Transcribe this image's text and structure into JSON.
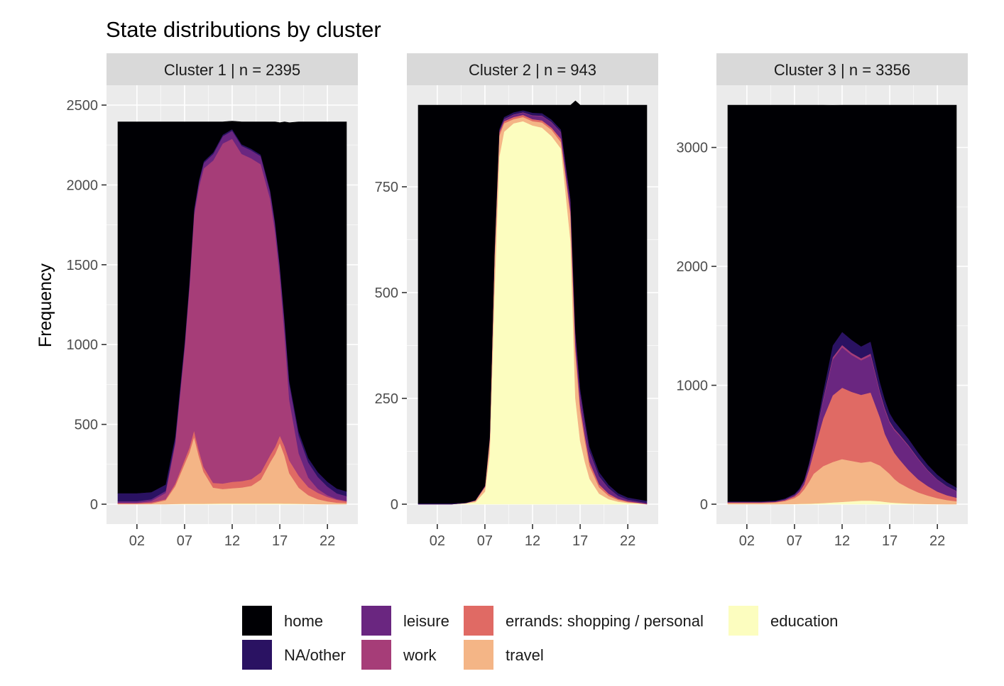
{
  "chart_data": {
    "type": "area",
    "title": "State distributions by cluster",
    "ylabel": "Frequency",
    "xlabel": "",
    "x_ticks": [
      "02",
      "07",
      "12",
      "17",
      "22"
    ],
    "x_tick_hours": [
      2,
      7,
      12,
      17,
      22
    ],
    "xlim": [
      0,
      24
    ],
    "states": [
      "home",
      "NA/other",
      "leisure",
      "work",
      "errands: shopping / personal",
      "travel",
      "education"
    ],
    "colors": {
      "home": "#000004",
      "NA/other": "#2a1262",
      "leisure": "#6a2680",
      "work": "#a63d78",
      "errands: shopping / personal": "#e06a64",
      "travel": "#f4b586",
      "education": "#fcfdbf"
    },
    "x_hours": [
      0,
      2,
      3.5,
      5,
      6,
      7,
      7.5,
      8,
      8.5,
      9,
      10,
      11,
      12,
      13,
      14,
      15,
      16,
      16.5,
      17,
      17.5,
      18,
      19,
      20,
      21,
      22,
      23,
      24
    ],
    "facets": [
      {
        "label": "Cluster 1  |  n = 2395",
        "n": 2395,
        "ylim": [
          0,
          2500
        ],
        "y_ticks": [
          0,
          500,
          1000,
          1500,
          2000,
          2500
        ],
        "series": [
          {
            "name": "education",
            "values": [
              0,
              0,
              0,
              0,
              2,
              3,
              3,
              3,
              3,
              3,
              4,
              5,
              5,
              5,
              5,
              5,
              5,
              5,
              5,
              4,
              4,
              3,
              2,
              1,
              0,
              0,
              0
            ]
          },
          {
            "name": "travel",
            "values": [
              3,
              3,
              5,
              25,
              110,
              250,
              320,
              420,
              300,
              200,
              100,
              90,
              95,
              100,
              110,
              150,
              260,
              310,
              380,
              300,
              190,
              100,
              55,
              30,
              18,
              10,
              8
            ]
          },
          {
            "name": "errands: shopping / personal",
            "values": [
              4,
              4,
              6,
              6,
              15,
              25,
              30,
              40,
              35,
              30,
              30,
              35,
              40,
              40,
              42,
              45,
              45,
              45,
              45,
              60,
              80,
              75,
              50,
              40,
              28,
              18,
              10
            ]
          },
          {
            "name": "work",
            "values": [
              2,
              2,
              10,
              40,
              250,
              700,
              1000,
              1350,
              1650,
              1870,
              2020,
              2130,
              2150,
              2050,
              2010,
              1930,
              1600,
              1350,
              1000,
              700,
              380,
              140,
              60,
              25,
              10,
              5,
              3
            ]
          },
          {
            "name": "leisure",
            "values": [
              10,
              10,
              10,
              12,
              15,
              20,
              22,
              25,
              30,
              35,
              40,
              45,
              50,
              50,
              50,
              50,
              45,
              50,
              60,
              80,
              100,
              110,
              95,
              75,
              55,
              35,
              30
            ]
          },
          {
            "name": "NA/other",
            "values": [
              50,
              50,
              45,
              40,
              30,
              20,
              15,
              12,
              10,
              10,
              10,
              10,
              10,
              10,
              10,
              10,
              10,
              10,
              10,
              15,
              20,
              25,
              28,
              30,
              30,
              30,
              30
            ]
          },
          {
            "name": "home",
            "values": [
              2326,
              2326,
              2319,
              2272,
              1973,
              1377,
              1005,
              545,
              367,
              247,
              191,
              80,
              50,
              140,
              168,
              205,
              430,
              625,
              890,
              1236,
              1616,
              1942,
              2105,
              2194,
              2254,
              2297,
              2314
            ]
          }
        ]
      },
      {
        "label": "Cluster 2  |  n = 943",
        "n": 943,
        "ylim": [
          0,
          943
        ],
        "y_ticks": [
          0,
          250,
          500,
          750
        ],
        "series": [
          {
            "name": "education",
            "values": [
              0,
              0,
              0,
              2,
              5,
              30,
              120,
              500,
              820,
              880,
              900,
              905,
              895,
              890,
              870,
              840,
              620,
              250,
              150,
              100,
              60,
              25,
              12,
              6,
              3,
              2,
              0
            ]
          },
          {
            "name": "travel",
            "values": [
              0,
              0,
              0,
              1,
              3,
              10,
              30,
              80,
              50,
              20,
              10,
              10,
              10,
              12,
              15,
              15,
              60,
              110,
              70,
              50,
              30,
              15,
              8,
              4,
              2,
              1,
              0
            ]
          },
          {
            "name": "errands: shopping / personal",
            "values": [
              0,
              0,
              0,
              0,
              1,
              2,
              5,
              10,
              8,
              5,
              5,
              5,
              5,
              5,
              5,
              8,
              10,
              15,
              15,
              12,
              10,
              7,
              5,
              3,
              2,
              1,
              1
            ]
          },
          {
            "name": "leisure",
            "values": [
              0,
              0,
              0,
              0,
              0,
              1,
              2,
              3,
              3,
              4,
              5,
              5,
              8,
              10,
              12,
              15,
              20,
              25,
              25,
              25,
              22,
              18,
              12,
              7,
              4,
              3,
              2
            ]
          },
          {
            "name": "work",
            "values": [
              0,
              0,
              0,
              0,
              0,
              0,
              1,
              1,
              1,
              1,
              1,
              1,
              1,
              1,
              1,
              1,
              2,
              3,
              3,
              3,
              2,
              1,
              1,
              0,
              0,
              0,
              0
            ]
          },
          {
            "name": "NA/other",
            "values": [
              2,
              2,
              2,
              1,
              1,
              1,
              2,
              3,
              4,
              5,
              5,
              5,
              6,
              6,
              6,
              6,
              8,
              10,
              12,
              12,
              12,
              10,
              8,
              6,
              5,
              5,
              5
            ]
          },
          {
            "name": "home",
            "values": [
              941,
              941,
              941,
              939,
              933,
              899,
              783,
              346,
              57,
              28,
              17,
              12,
              18,
              19,
              34,
              58,
              223,
              540,
              668,
              741,
              807,
              867,
              897,
              917,
              927,
              931,
              935
            ]
          }
        ]
      },
      {
        "label": "Cluster 3  |  n = 3356",
        "n": 3356,
        "ylim": [
          0,
          3356
        ],
        "y_ticks": [
          0,
          1000,
          2000,
          3000
        ],
        "series": [
          {
            "name": "education",
            "values": [
              0,
              0,
              0,
              0,
              1,
              2,
              3,
              4,
              5,
              6,
              10,
              15,
              20,
              25,
              30,
              30,
              25,
              20,
              15,
              12,
              10,
              6,
              4,
              2,
              1,
              0,
              0
            ]
          },
          {
            "name": "travel",
            "values": [
              10,
              10,
              10,
              15,
              25,
              50,
              75,
              120,
              180,
              250,
              310,
              340,
              360,
              340,
              320,
              330,
              300,
              270,
              240,
              200,
              170,
              130,
              95,
              70,
              50,
              35,
              25
            ]
          },
          {
            "name": "errands: shopping / personal",
            "values": [
              5,
              5,
              5,
              5,
              8,
              15,
              25,
              40,
              100,
              180,
              400,
              560,
              600,
              580,
              570,
              580,
              400,
              300,
              250,
              220,
              200,
              150,
              110,
              80,
              55,
              40,
              30
            ]
          },
          {
            "name": "leisure",
            "values": [
              3,
              3,
              3,
              3,
              5,
              8,
              12,
              20,
              30,
              50,
              150,
              300,
              340,
              310,
              290,
              310,
              200,
              200,
              180,
              190,
              200,
              200,
              170,
              130,
              100,
              75,
              55
            ]
          },
          {
            "name": "work",
            "values": [
              1,
              1,
              1,
              1,
              2,
              3,
              4,
              5,
              8,
              10,
              15,
              20,
              20,
              18,
              18,
              18,
              15,
              15,
              12,
              12,
              10,
              8,
              6,
              5,
              3,
              2,
              2
            ]
          },
          {
            "name": "NA/other",
            "values": [
              5,
              5,
              5,
              6,
              8,
              10,
              12,
              15,
              20,
              30,
              60,
              100,
              110,
              110,
              100,
              100,
              80,
              75,
              70,
              65,
              60,
              55,
              50,
              45,
              40,
              35,
              30
            ]
          },
          {
            "name": "home",
            "values": [
              3332,
              3332,
              3332,
              3326,
              3307,
              3268,
              3225,
              3152,
              3013,
              2830,
              2411,
              2020,
              1906,
              1973,
              2028,
              1988,
              2336,
              2476,
              2589,
              2657,
              2706,
              2807,
              2921,
              3024,
              3107,
              3169,
              3214
            ]
          }
        ]
      }
    ]
  }
}
